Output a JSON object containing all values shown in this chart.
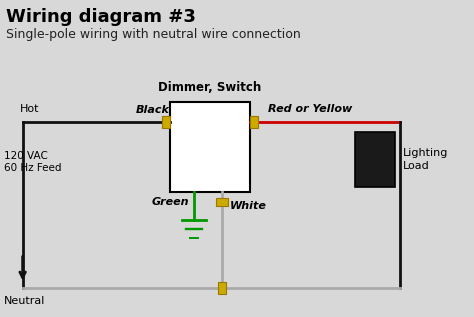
{
  "title": "Wiring diagram #3",
  "subtitle": "Single-pole wiring with neutral wire connection",
  "bg_color": "#d8d8d8",
  "dimmer_label": "Dimmer, Switch",
  "load_label": "Lighting\nLoad",
  "wire_black_color": "#111111",
  "wire_red_color": "#cc0000",
  "wire_green_color": "#009900",
  "wire_gray_color": "#aaaaaa",
  "connector_color": "#ccaa00",
  "label_hot": "Hot",
  "label_120": "120 VAC\n60 Hz Feed",
  "label_neutral": "Neutral",
  "label_black": "Black",
  "label_red": "Red or Yellow",
  "label_green": "Green",
  "label_white": "White",
  "title_fontsize": 13,
  "subtitle_fontsize": 9
}
